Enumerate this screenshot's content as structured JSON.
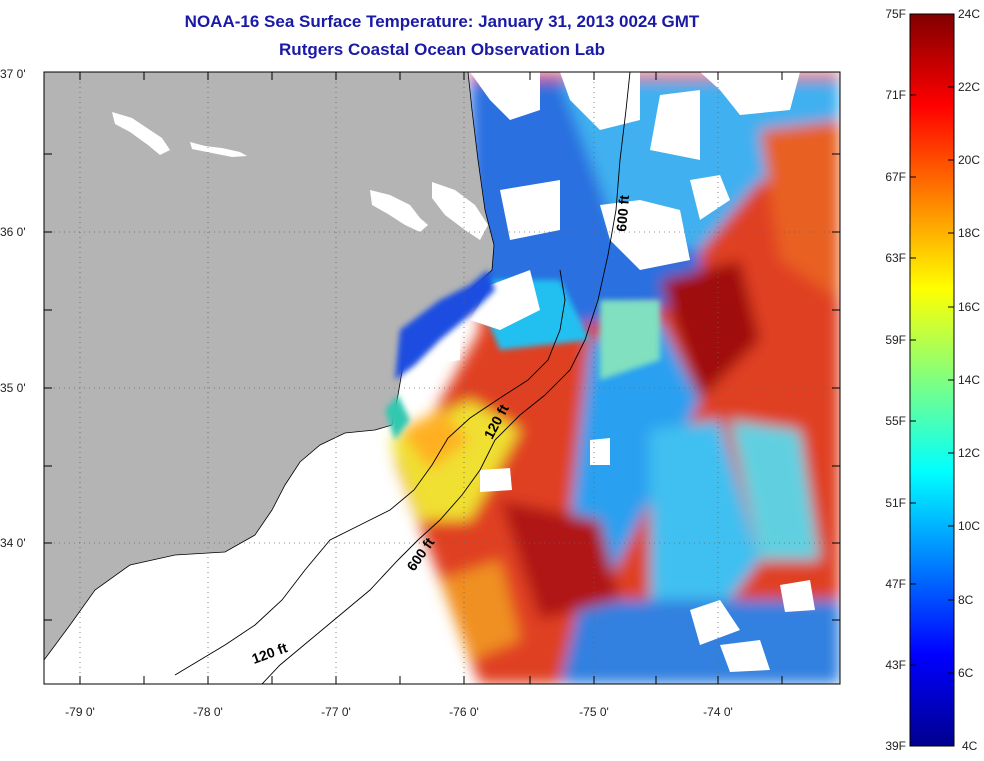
{
  "title": {
    "line1": "NOAA-16 Sea Surface Temperature:  January 31, 2013 0024 GMT",
    "line2": "Rutgers Coastal Ocean Observation Lab"
  },
  "colors": {
    "title": "#1a1aa6",
    "land": "#b4b4b4",
    "cloud": "#ffffff",
    "sst_warm": "#c81e1e",
    "sst_cool": "#1e5adc"
  },
  "map": {
    "lat_labels": [
      "37 0'",
      "36 0'",
      "35 0'",
      "34 0'"
    ],
    "lon_labels": [
      "-79 0'",
      "-78 0'",
      "-77 0'",
      "-76 0'",
      "-75 0'",
      "-74 0'"
    ],
    "contour_labels": [
      "600 ft",
      "120 ft",
      "600 ft",
      "120 ft"
    ]
  },
  "colorbar": {
    "fahrenheit": [
      "75F",
      "71F",
      "67F",
      "63F",
      "59F",
      "55F",
      "51F",
      "47F",
      "43F",
      "39F"
    ],
    "celsius": [
      "24C",
      "22C",
      "20C",
      "18C",
      "16C",
      "14C",
      "12C",
      "10C",
      "8C",
      "6C",
      "4C"
    ]
  }
}
